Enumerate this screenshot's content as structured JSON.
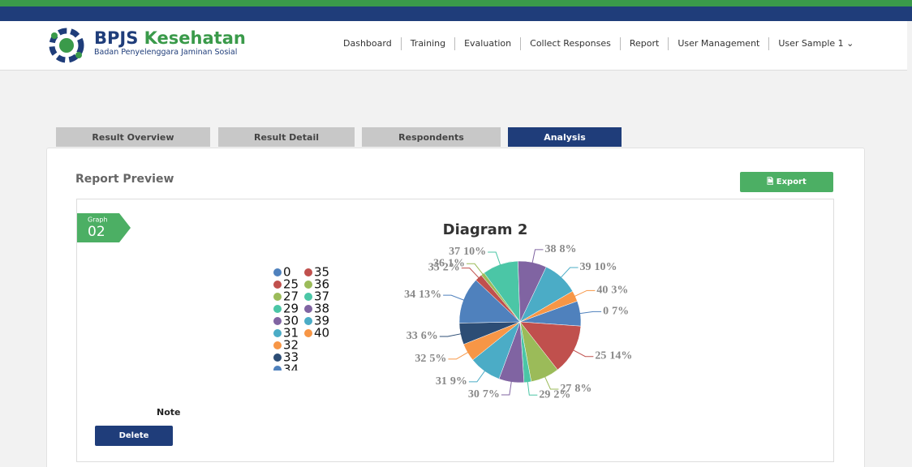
{
  "header": {
    "logo_brand": "BPJS",
    "logo_name": "Kesehatan",
    "logo_subtitle": "Badan Penyelenggara Jaminan Sosial"
  },
  "nav": [
    "Dashboard",
    "Training",
    "Evaluation",
    "Collect Responses",
    "Report",
    "User Management",
    "User Sample 1"
  ],
  "tabs": [
    "Result Overview",
    "Result Detail",
    "Respondents",
    "Analysis"
  ],
  "report": {
    "title": "Report Preview",
    "export": "Export",
    "graph_tag": "Graph",
    "graph_number": "02",
    "note": "Note",
    "delete": "Delete"
  },
  "chart_data": {
    "type": "pie",
    "title": "Diagram 2",
    "categories": [
      "0",
      "25",
      "27",
      "29",
      "30",
      "31",
      "32",
      "33",
      "34",
      "35",
      "36",
      "37",
      "38",
      "39",
      "40"
    ],
    "values": [
      7,
      14,
      8,
      2,
      7,
      9,
      5,
      6,
      13,
      2,
      1,
      10,
      8,
      10,
      3
    ],
    "value_labels": [
      "7%",
      "14%",
      "8%",
      "2%",
      "7%",
      "9%",
      "5%",
      "6%",
      "13%",
      "2%",
      "1%",
      "10%",
      "8%",
      "10%",
      "3%"
    ],
    "colors": [
      "#4f81bd",
      "#c0504d",
      "#9bbb59",
      "#4bc6a6",
      "#8064a2",
      "#4bacc6",
      "#f79646",
      "#2c4d75",
      "#4f81bd",
      "#c0504d",
      "#9bbb59",
      "#4bc6a6",
      "#8064a2",
      "#4bacc6",
      "#f79646"
    ]
  }
}
